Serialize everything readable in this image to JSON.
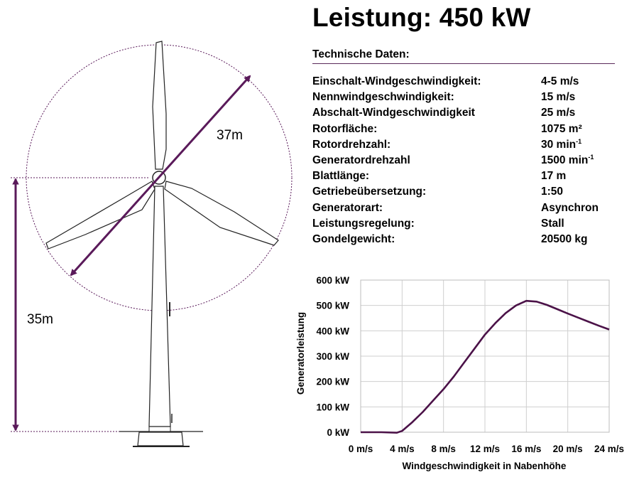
{
  "title": "Leistung: 450 kW",
  "specs": {
    "heading": "Technische Daten:",
    "rows": [
      {
        "label": "Einschalt-Windgeschwindigkeit:",
        "value": "4-5 m/s"
      },
      {
        "label": "Nennwindgeschwindigkeit:",
        "value": "15 m/s"
      },
      {
        "label": "Abschalt-Windgeschwindigkeit",
        "value": "25 m/s"
      },
      {
        "label": "Rotorfläche:",
        "value": "1075 m²"
      },
      {
        "label": "Rotordrehzahl:",
        "value": "30 min",
        "sup": "-1"
      },
      {
        "label": "Generatordrehzahl",
        "value": "1500 min",
        "sup": "-1"
      },
      {
        "label": "Blattlänge:",
        "value": "17 m"
      },
      {
        "label": "Getriebeübersetzung:",
        "value": "1:50"
      },
      {
        "label": "Generatorart:",
        "value": "Asynchron"
      },
      {
        "label": "Leistungsregelung:",
        "value": "Stall"
      },
      {
        "label": "Gondelgewicht:",
        "value": "20500 kg"
      }
    ]
  },
  "diagram": {
    "rotor_diameter_label": "37m",
    "hub_height_label": "35m",
    "accent_color": "#5a1a5a"
  },
  "chart_data": {
    "type": "line",
    "xlabel": "Windgeschwindigkeit in Nabenhöhe",
    "ylabel": "Generatorleistung",
    "x_ticks": [
      "0 m/s",
      "4 m/s",
      "8 m/s",
      "12 m/s",
      "16 m/s",
      "20 m/s",
      "24 m/s"
    ],
    "y_ticks": [
      "0 kW",
      "100 kW",
      "200 kW",
      "300 kW",
      "400 kW",
      "500 kW",
      "600 kW"
    ],
    "xlim": [
      0,
      24
    ],
    "ylim": [
      0,
      600
    ],
    "grid": true,
    "series": [
      {
        "color": "#4b1248",
        "x": [
          0,
          2,
          3.5,
          4,
          5,
          6,
          7,
          8,
          9,
          10,
          11,
          12,
          13,
          14,
          15,
          16,
          17,
          18,
          19,
          20,
          21,
          22,
          23,
          24
        ],
        "y": [
          0,
          0,
          -2,
          5,
          40,
          80,
          125,
          170,
          220,
          275,
          330,
          385,
          430,
          470,
          500,
          518,
          515,
          502,
          485,
          468,
          452,
          436,
          420,
          405
        ]
      }
    ]
  }
}
